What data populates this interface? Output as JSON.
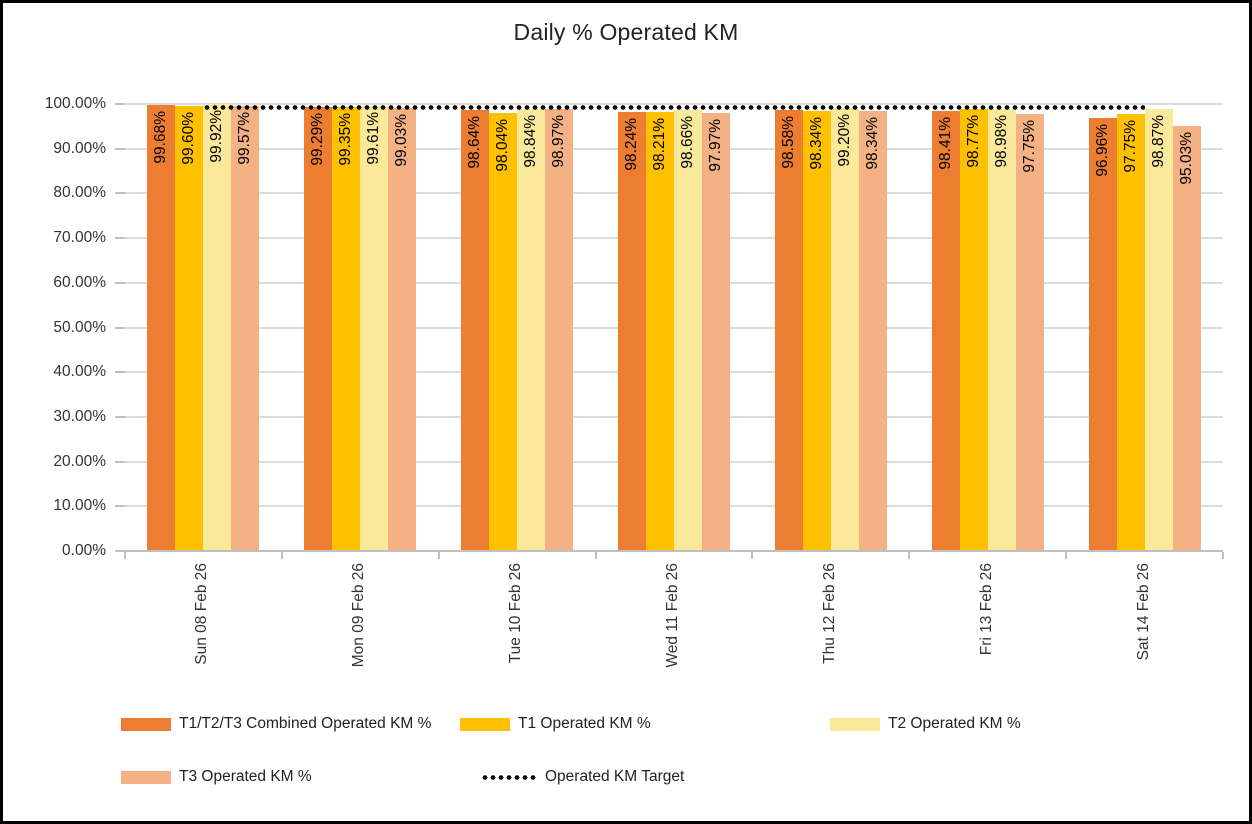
{
  "chart_data": {
    "type": "bar",
    "title": "Daily % Operated KM",
    "categories": [
      "Sun 08 Feb 26",
      "Mon 09 Feb 26",
      "Tue 10 Feb 26",
      "Wed 11 Feb 26",
      "Thu 12 Feb 26",
      "Fri 13 Feb 26",
      "Sat 14 Feb 26"
    ],
    "series": [
      {
        "name": "T1/T2/T3 Combined Operated KM %",
        "color": "#ED7D31",
        "values": [
          99.68,
          99.29,
          98.64,
          98.24,
          98.58,
          98.41,
          96.96
        ]
      },
      {
        "name": "T1 Operated KM %",
        "color": "#FFC000",
        "values": [
          99.6,
          99.35,
          98.04,
          98.21,
          98.34,
          98.77,
          97.75
        ]
      },
      {
        "name": "T2 Operated KM %",
        "color": "#FAE99B",
        "values": [
          99.92,
          99.61,
          98.84,
          98.66,
          99.2,
          98.98,
          98.87
        ]
      },
      {
        "name": "T3 Operated KM %",
        "color": "#F4B183",
        "values": [
          99.57,
          99.03,
          98.97,
          97.97,
          98.34,
          97.75,
          95.03
        ]
      }
    ],
    "target_line": {
      "name": "Operated KM Target",
      "value": 99.2,
      "color": "#000000",
      "style": "dotted"
    },
    "y_axis": {
      "min": 0,
      "max": 100,
      "tick_step": 10,
      "tick_labels": [
        "0.00%",
        "10.00%",
        "20.00%",
        "30.00%",
        "40.00%",
        "50.00%",
        "60.00%",
        "70.00%",
        "80.00%",
        "90.00%",
        "100.00%"
      ]
    },
    "value_label_format": "0.00%",
    "value_label_position": "inside-end-rotated",
    "x_label_rotation": "vertical",
    "legend_position": "bottom",
    "grid": true,
    "colors": {
      "gridline": "#DCDCDC",
      "axis": "#BFBFBF",
      "text": "#333333",
      "bar_label": "#000000",
      "title": "#222222"
    }
  }
}
